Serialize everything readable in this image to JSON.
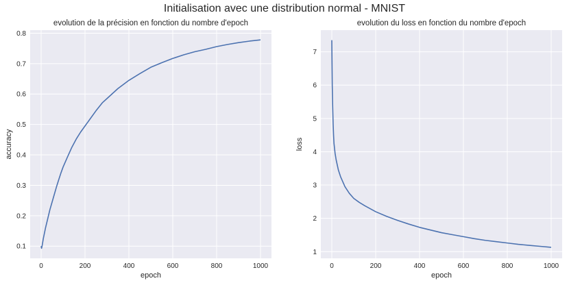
{
  "figure": {
    "title": "Initialisation avec une distribution normal - MNIST"
  },
  "colors": {
    "background": "#eaeaf2",
    "grid": "#ffffff",
    "line": "#4c72b0",
    "text": "#262626"
  },
  "chart_data": [
    {
      "type": "line",
      "title": "evolution de la précision en fonction du nombre d'epoch",
      "xlabel": "epoch",
      "ylabel": "accuracy",
      "xlim": [
        -50,
        1050
      ],
      "ylim": [
        0.06,
        0.81
      ],
      "xticks": [
        0,
        200,
        400,
        600,
        800,
        1000
      ],
      "yticks": [
        0.1,
        0.2,
        0.3,
        0.4,
        0.5,
        0.6,
        0.7,
        0.8
      ],
      "grid": true,
      "series": [
        {
          "x": [
            0,
            2,
            5,
            10,
            20,
            30,
            40,
            50,
            60,
            70,
            80,
            90,
            100,
            120,
            140,
            160,
            180,
            200,
            220,
            250,
            280,
            300,
            350,
            400,
            450,
            500,
            550,
            600,
            650,
            700,
            750,
            800,
            850,
            900,
            950,
            1000
          ],
          "values": [
            0.1,
            0.093,
            0.103,
            0.125,
            0.16,
            0.19,
            0.22,
            0.245,
            0.27,
            0.295,
            0.318,
            0.34,
            0.36,
            0.393,
            0.425,
            0.452,
            0.475,
            0.495,
            0.515,
            0.545,
            0.572,
            0.585,
            0.618,
            0.645,
            0.667,
            0.688,
            0.703,
            0.717,
            0.729,
            0.739,
            0.747,
            0.756,
            0.763,
            0.769,
            0.774,
            0.778
          ]
        }
      ]
    },
    {
      "type": "line",
      "title": "evolution du loss en fonction du nombre d'epoch",
      "xlabel": "epoch",
      "ylabel": "loss",
      "xlim": [
        -50,
        1050
      ],
      "ylim": [
        0.8,
        7.65
      ],
      "xticks": [
        0,
        200,
        400,
        600,
        800,
        1000
      ],
      "yticks": [
        1,
        2,
        3,
        4,
        5,
        6,
        7
      ],
      "grid": true,
      "series": [
        {
          "x": [
            0,
            2,
            4,
            6,
            8,
            10,
            15,
            20,
            30,
            40,
            50,
            60,
            80,
            100,
            125,
            150,
            200,
            250,
            300,
            350,
            400,
            450,
            500,
            550,
            600,
            650,
            700,
            750,
            800,
            850,
            900,
            950,
            1000
          ],
          "values": [
            7.35,
            6.0,
            5.35,
            4.85,
            4.5,
            4.25,
            3.95,
            3.75,
            3.45,
            3.25,
            3.1,
            2.95,
            2.75,
            2.6,
            2.48,
            2.38,
            2.2,
            2.06,
            1.94,
            1.83,
            1.73,
            1.65,
            1.57,
            1.51,
            1.45,
            1.39,
            1.34,
            1.3,
            1.26,
            1.22,
            1.19,
            1.16,
            1.13
          ]
        }
      ]
    }
  ]
}
